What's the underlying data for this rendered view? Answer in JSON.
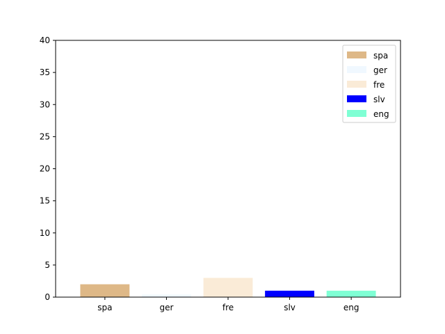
{
  "chart_data": {
    "type": "bar",
    "categories": [
      "spa",
      "ger",
      "fre",
      "slv",
      "eng"
    ],
    "values": [
      2,
      0.4,
      3,
      1,
      1
    ],
    "colors": [
      "#deb887",
      "#f0f8ff",
      "#faebd7",
      "#0000ff",
      "#7fffd4"
    ],
    "ylim": [
      0,
      40
    ],
    "yticks": [
      0,
      5,
      10,
      15,
      20,
      25,
      30,
      35,
      40
    ],
    "legend": {
      "placement": "top-right",
      "entries": [
        "spa",
        "ger",
        "fre",
        "slv",
        "eng"
      ]
    },
    "grid": false
  }
}
